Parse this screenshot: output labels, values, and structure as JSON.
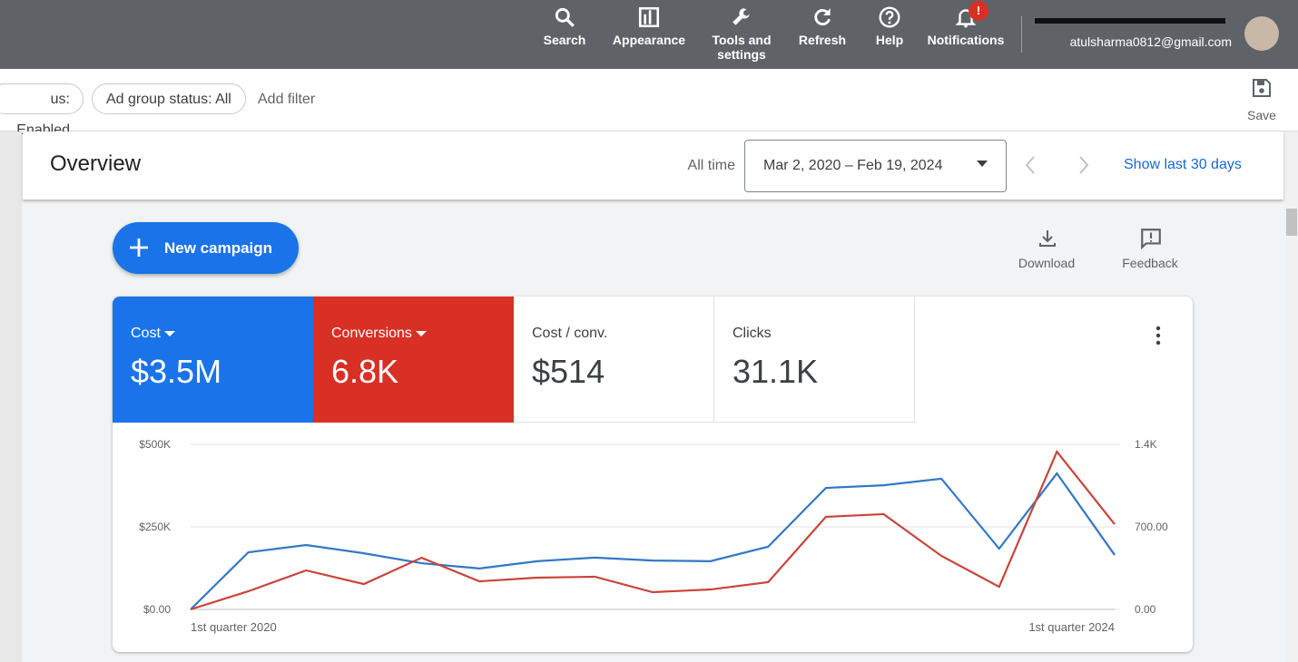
{
  "top_bar": {
    "items": [
      "Search",
      "Appearance",
      "Tools and settings",
      "Refresh",
      "Help",
      "Notifications"
    ],
    "notification_badge": "!",
    "account_email": "atulsharma0812@gmail.com"
  },
  "filter_bar": {
    "chips": [
      "us: Enabled",
      "Ad group status: All"
    ],
    "add_filter": "Add filter",
    "save": "Save"
  },
  "header": {
    "title": "Overview",
    "range_label": "All time",
    "date_range": "Mar 2, 2020 – Feb 19, 2024",
    "show_last": "Show last 30 days"
  },
  "actions": {
    "new_campaign": "New campaign",
    "download": "Download",
    "feedback": "Feedback"
  },
  "metrics": [
    {
      "label": "Cost / conv.",
      "value": "$514"
    },
    {
      "label": "Clicks",
      "value": "31.1K"
    }
  ],
  "chart_data": {
    "type": "line",
    "categories": [
      "1st quarter 2020",
      null,
      null,
      null,
      null,
      null,
      null,
      null,
      null,
      null,
      null,
      null,
      null,
      null,
      null,
      null,
      "1st quarter 2024"
    ],
    "series": [
      {
        "name": "Cost",
        "summary": "$3.5M",
        "color": "#3178c6",
        "axis": "y",
        "values": [
          0,
          173000,
          195000,
          170000,
          140000,
          124000,
          146000,
          157000,
          148000,
          146000,
          190000,
          368000,
          376000,
          396000,
          184000,
          412000,
          165000
        ]
      },
      {
        "name": "Conversions",
        "summary": "6.8K",
        "color": "#c9443a",
        "axis": "y2",
        "values": [
          0,
          154,
          331,
          215,
          438,
          238,
          269,
          277,
          146,
          169,
          231,
          785,
          808,
          454,
          192,
          1338,
          723
        ]
      }
    ],
    "ylim": [
      0,
      500000
    ],
    "yticks": [
      {
        "value": 0,
        "label": "$0.00"
      },
      {
        "value": 250000,
        "label": "$250K"
      },
      {
        "value": 500000,
        "label": "$500K"
      }
    ],
    "y2lim": [
      0,
      1400
    ],
    "y2ticks": [
      {
        "value": 0,
        "label": "0.00"
      },
      {
        "value": 700,
        "label": "700.00"
      },
      {
        "value": 1400,
        "label": "1.4K"
      }
    ],
    "grid": true
  }
}
